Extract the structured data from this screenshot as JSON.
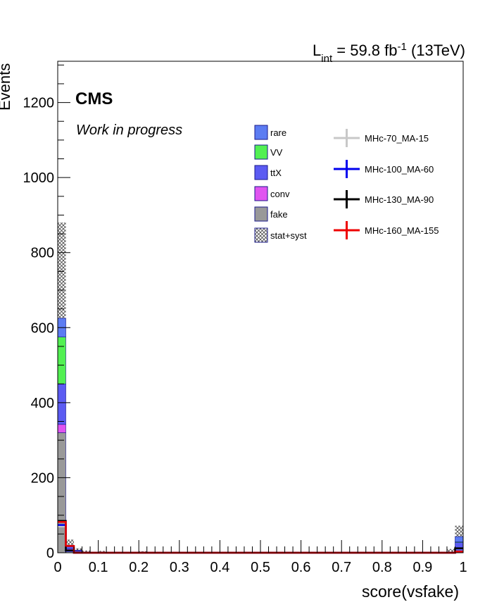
{
  "chart_data": {
    "type": "bar",
    "stacked": true,
    "xlabel": "score(vsfake)",
    "ylabel": "Events",
    "xlim": [
      0,
      1
    ],
    "ylim": [
      0,
      1310
    ],
    "bin_width": 0.02,
    "x_ticks": [
      "0",
      "0.1",
      "0.2",
      "0.3",
      "0.4",
      "0.5",
      "0.6",
      "0.7",
      "0.8",
      "0.9",
      "1"
    ],
    "x_tick_values": [
      0,
      0.1,
      0.2,
      0.3,
      0.4,
      0.5,
      0.6,
      0.7,
      0.8,
      0.9,
      1
    ],
    "y_ticks": [
      "0",
      "200",
      "400",
      "600",
      "800",
      "1000",
      "1200"
    ],
    "y_tick_values": [
      0,
      200,
      400,
      600,
      800,
      1000,
      1200
    ],
    "lumi_label": {
      "main": "L",
      "sub": "int",
      "mid": " = 59.8 fb",
      "sup": "-1",
      "tail": " (13TeV)"
    },
    "cms_label": "CMS",
    "status_label": "Work in progress",
    "grid": false,
    "legend_placement": "top-right",
    "background_series": [
      {
        "name": "fake",
        "color": "#999999",
        "bins": [
          {
            "x": 0.0,
            "y": 320
          },
          {
            "x": 0.02,
            "y": 8
          },
          {
            "x": 0.04,
            "y": 3
          },
          {
            "x": 0.98,
            "y": 5
          }
        ]
      },
      {
        "name": "conv",
        "color": "#e054f0",
        "bins": [
          {
            "x": 0.0,
            "y": 22
          },
          {
            "x": 0.02,
            "y": 2
          },
          {
            "x": 0.98,
            "y": 2
          }
        ]
      },
      {
        "name": "ttX",
        "color": "#5b5bf2",
        "bins": [
          {
            "x": 0.0,
            "y": 108
          },
          {
            "x": 0.02,
            "y": 6
          },
          {
            "x": 0.04,
            "y": 3
          },
          {
            "x": 0.06,
            "y": 2
          },
          {
            "x": 0.1,
            "y": 1
          },
          {
            "x": 0.96,
            "y": 2
          },
          {
            "x": 0.98,
            "y": 20
          }
        ]
      },
      {
        "name": "VV",
        "color": "#52f052",
        "bins": [
          {
            "x": 0.0,
            "y": 125
          },
          {
            "x": 0.02,
            "y": 2
          },
          {
            "x": 0.98,
            "y": 2
          }
        ]
      },
      {
        "name": "rare",
        "color": "#5c7cf2",
        "bins": [
          {
            "x": 0.0,
            "y": 50
          },
          {
            "x": 0.02,
            "y": 2
          },
          {
            "x": 0.04,
            "y": 1
          },
          {
            "x": 0.98,
            "y": 14
          }
        ]
      }
    ],
    "uncertainty": {
      "name": "stat+syst",
      "bins": [
        {
          "x": 0.0,
          "y": 625,
          "up": 880,
          "down": 370
        },
        {
          "x": 0.02,
          "y": 20,
          "up": 35,
          "down": 8
        },
        {
          "x": 0.04,
          "y": 7,
          "up": 12,
          "down": 3
        },
        {
          "x": 0.06,
          "y": 2,
          "up": 6,
          "down": 0
        },
        {
          "x": 0.1,
          "y": 1,
          "up": 5,
          "down": 0
        },
        {
          "x": 0.2,
          "y": 1,
          "up": 4,
          "down": 0
        },
        {
          "x": 0.96,
          "y": 2,
          "up": 10,
          "down": 0
        },
        {
          "x": 0.98,
          "y": 43,
          "up": 72,
          "down": 20
        }
      ]
    },
    "signal_series": [
      {
        "name": "MHc-70_MA-15",
        "color": "#c8c8c8",
        "bins": [
          {
            "x": 0.0,
            "y": 70
          },
          {
            "x": 0.02,
            "y": 4
          },
          {
            "x": 0.98,
            "y": 5
          }
        ]
      },
      {
        "name": "MHc-100_MA-60",
        "color": "#0000ee",
        "bins": [
          {
            "x": 0.0,
            "y": 74
          },
          {
            "x": 0.02,
            "y": 5
          },
          {
            "x": 0.98,
            "y": 4
          }
        ]
      },
      {
        "name": "MHc-130_MA-90",
        "color": "#000000",
        "bins": [
          {
            "x": 0.0,
            "y": 85
          },
          {
            "x": 0.02,
            "y": 6
          },
          {
            "x": 0.98,
            "y": 12
          }
        ]
      },
      {
        "name": "MHc-160_MA-155",
        "color": "#ee0000",
        "bins": [
          {
            "x": 0.0,
            "y": 82
          },
          {
            "x": 0.02,
            "y": 18
          },
          {
            "x": 0.98,
            "y": 3
          }
        ]
      }
    ],
    "legend_background_order": [
      "rare",
      "VV",
      "ttX",
      "conv",
      "fake",
      "stat+syst"
    ],
    "legend_signal_order": [
      "MHc-70_MA-15",
      "MHc-100_MA-60",
      "MHc-130_MA-90",
      "MHc-160_MA-155"
    ]
  }
}
